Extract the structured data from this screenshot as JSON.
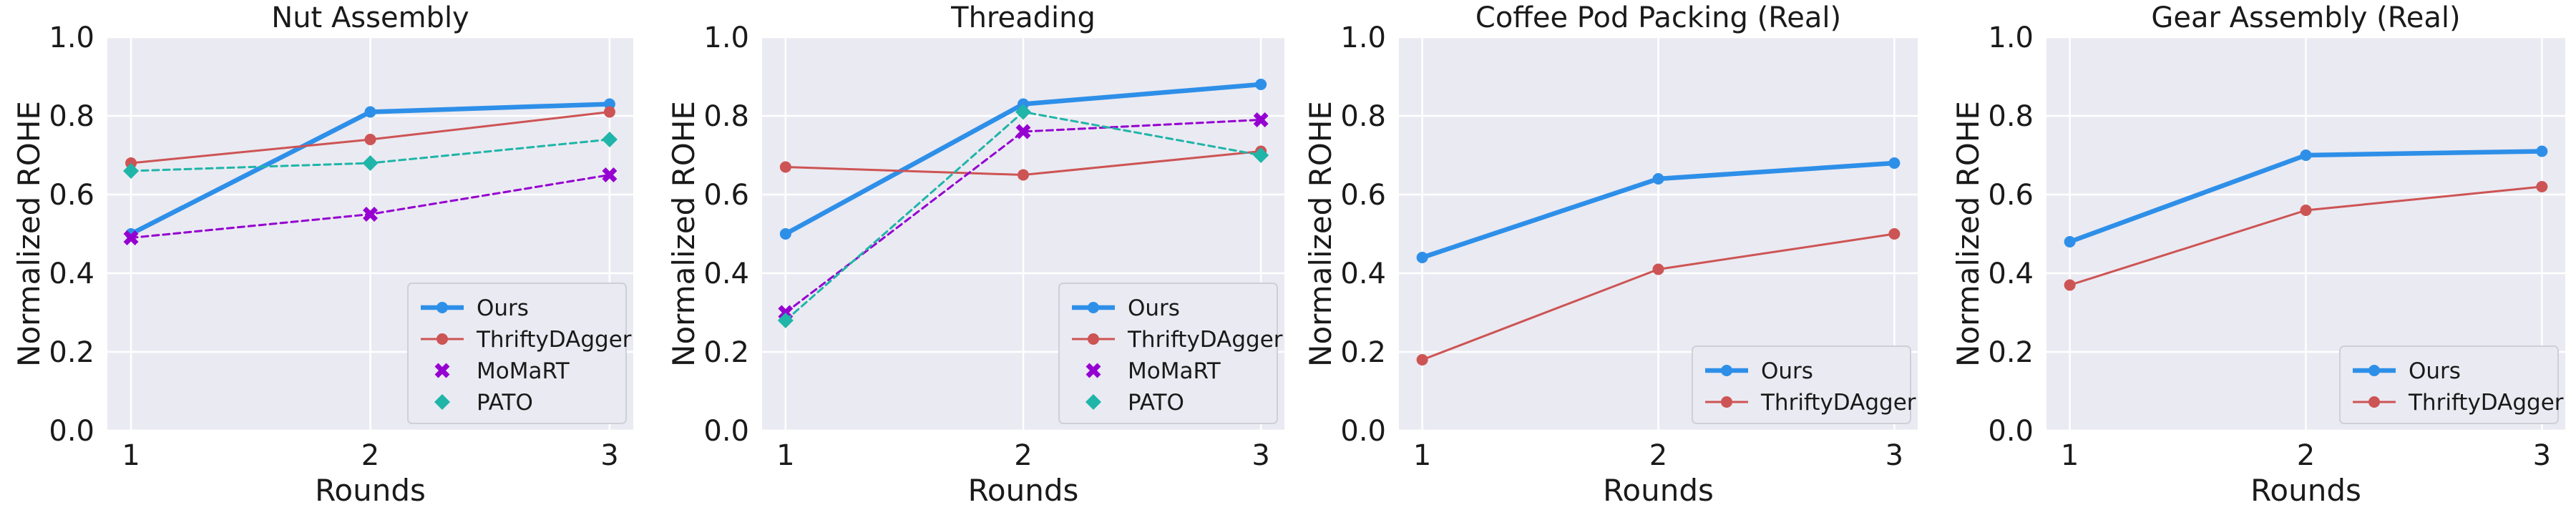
{
  "chart_data": [
    {
      "type": "line",
      "title": "Nut Assembly",
      "xlabel": "Rounds",
      "ylabel": "Normalized ROHE",
      "categories": [
        "1",
        "2",
        "3"
      ],
      "ylim": [
        0.0,
        1.0
      ],
      "yticks": [
        "0.0",
        "0.2",
        "0.4",
        "0.6",
        "0.8",
        "1.0"
      ],
      "grid": true,
      "legend_position": "lower-right",
      "series": [
        {
          "name": "Ours",
          "values": [
            0.5,
            0.81,
            0.83
          ],
          "color": "#2e8fe8",
          "style": "solid-thick",
          "marker": "circle"
        },
        {
          "name": "ThriftyDAgger",
          "values": [
            0.68,
            0.74,
            0.81
          ],
          "color": "#cd5454",
          "style": "solid",
          "marker": "circle"
        },
        {
          "name": "MoMaRT",
          "values": [
            0.49,
            0.55,
            0.65
          ],
          "color": "#9500d1",
          "style": "dashed",
          "marker": "x"
        },
        {
          "name": "PATO",
          "values": [
            0.66,
            0.68,
            0.74
          ],
          "color": "#1fb5a8",
          "style": "dashed",
          "marker": "diamond"
        }
      ]
    },
    {
      "type": "line",
      "title": "Threading",
      "xlabel": "Rounds",
      "ylabel": "Normalized ROHE",
      "categories": [
        "1",
        "2",
        "3"
      ],
      "ylim": [
        0.0,
        1.0
      ],
      "yticks": [
        "0.0",
        "0.2",
        "0.4",
        "0.6",
        "0.8",
        "1.0"
      ],
      "grid": true,
      "legend_position": "lower-right",
      "series": [
        {
          "name": "Ours",
          "values": [
            0.5,
            0.83,
            0.88
          ],
          "color": "#2e8fe8",
          "style": "solid-thick",
          "marker": "circle"
        },
        {
          "name": "ThriftyDAgger",
          "values": [
            0.67,
            0.65,
            0.71
          ],
          "color": "#cd5454",
          "style": "solid",
          "marker": "circle"
        },
        {
          "name": "MoMaRT",
          "values": [
            0.3,
            0.76,
            0.79
          ],
          "color": "#9500d1",
          "style": "dashed",
          "marker": "x"
        },
        {
          "name": "PATO",
          "values": [
            0.28,
            0.81,
            0.7
          ],
          "color": "#1fb5a8",
          "style": "dashed",
          "marker": "diamond"
        }
      ]
    },
    {
      "type": "line",
      "title": "Coffee Pod Packing (Real)",
      "xlabel": "Rounds",
      "ylabel": "Normalized ROHE",
      "categories": [
        "1",
        "2",
        "3"
      ],
      "ylim": [
        0.0,
        1.0
      ],
      "yticks": [
        "0.0",
        "0.2",
        "0.4",
        "0.6",
        "0.8",
        "1.0"
      ],
      "grid": true,
      "legend_position": "lower-right",
      "series": [
        {
          "name": "Ours",
          "values": [
            0.44,
            0.64,
            0.68
          ],
          "color": "#2e8fe8",
          "style": "solid-thick",
          "marker": "circle"
        },
        {
          "name": "ThriftyDAgger",
          "values": [
            0.18,
            0.41,
            0.5
          ],
          "color": "#cd5454",
          "style": "solid",
          "marker": "circle"
        }
      ]
    },
    {
      "type": "line",
      "title": "Gear Assembly (Real)",
      "xlabel": "Rounds",
      "ylabel": "Normalized ROHE",
      "categories": [
        "1",
        "2",
        "3"
      ],
      "ylim": [
        0.0,
        1.0
      ],
      "yticks": [
        "0.0",
        "0.2",
        "0.4",
        "0.6",
        "0.8",
        "1.0"
      ],
      "grid": true,
      "legend_position": "lower-right",
      "series": [
        {
          "name": "Ours",
          "values": [
            0.48,
            0.7,
            0.71
          ],
          "color": "#2e8fe8",
          "style": "solid-thick",
          "marker": "circle"
        },
        {
          "name": "ThriftyDAgger",
          "values": [
            0.37,
            0.56,
            0.62
          ],
          "color": "#cd5454",
          "style": "solid",
          "marker": "circle"
        }
      ]
    }
  ]
}
